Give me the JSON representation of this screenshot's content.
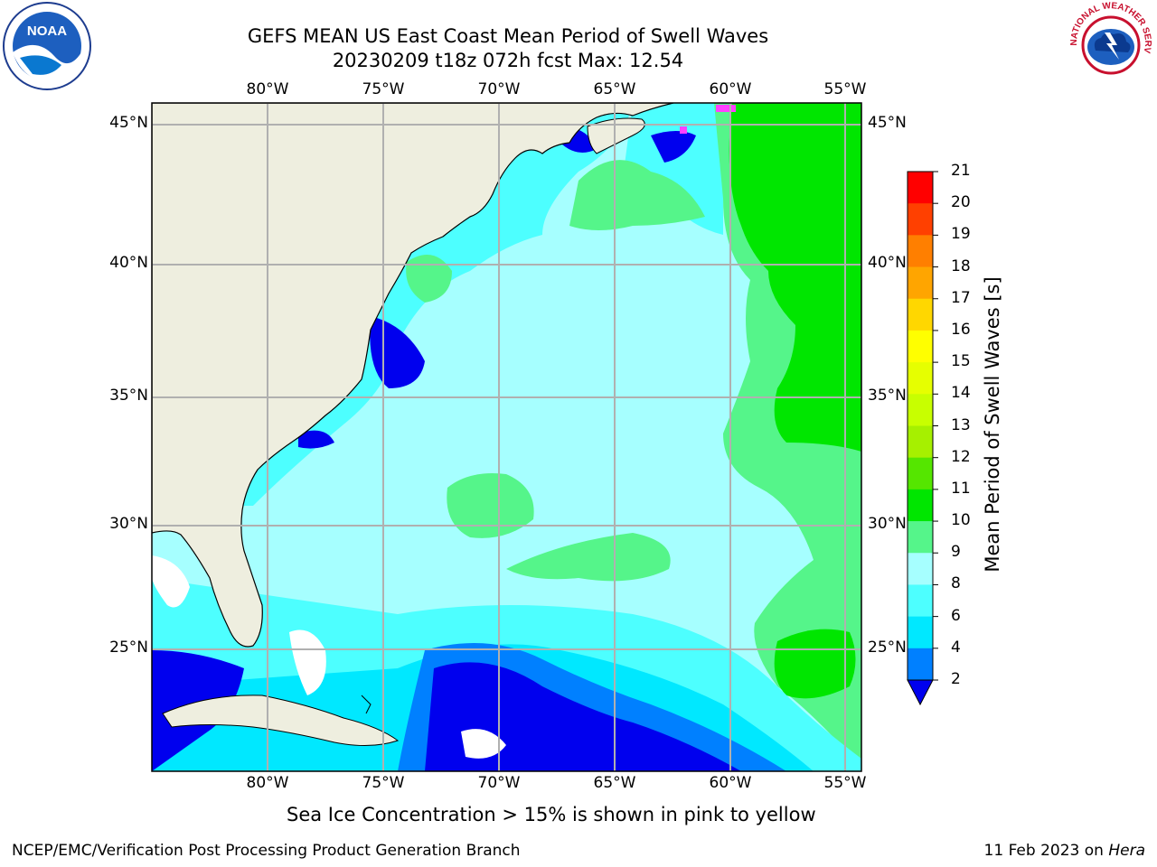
{
  "header": {
    "title_line1": "GEFS MEAN US East Coast Mean Period of Swell Waves",
    "title_line2": "20230209 t18z 072h fcst   Max: 12.54"
  },
  "logos": {
    "left": "NOAA",
    "right_text": "NATIONAL WEATHER SERVICE"
  },
  "map": {
    "lon_labels": [
      "80°W",
      "75°W",
      "70°W",
      "65°W",
      "60°W",
      "55°W"
    ],
    "lat_labels": [
      "45°N",
      "40°N",
      "35°N",
      "30°N",
      "25°N"
    ],
    "lon_range": [
      -85,
      -54.5
    ],
    "lat_range": [
      20.5,
      45.8
    ],
    "grid": true
  },
  "colorbar": {
    "label": "Mean Period of Swell Waves [s]",
    "ticks": [
      "2",
      "4",
      "6",
      "8",
      "9",
      "10",
      "11",
      "12",
      "13",
      "14",
      "15",
      "16",
      "17",
      "18",
      "19",
      "20",
      "21"
    ],
    "colors": [
      "#0000ee",
      "#0080ff",
      "#00e8ff",
      "#4dffff",
      "#a6ffff",
      "#55f58a",
      "#00e600",
      "#55e600",
      "#a6f000",
      "#c8ff00",
      "#e6ff00",
      "#ffff00",
      "#ffd700",
      "#ffa500",
      "#ff7f00",
      "#ff4000",
      "#ff0000"
    ]
  },
  "note": "Sea Ice Concentration > 15% is shown in pink to yellow",
  "footer": {
    "left": "NCEP/EMC/Verification Post Processing Product Generation Branch",
    "right_date": "11 Feb 2023 on ",
    "right_host": "Hera"
  },
  "colors": {
    "land": "#eeeedf",
    "grid": "#b0b0b0"
  }
}
